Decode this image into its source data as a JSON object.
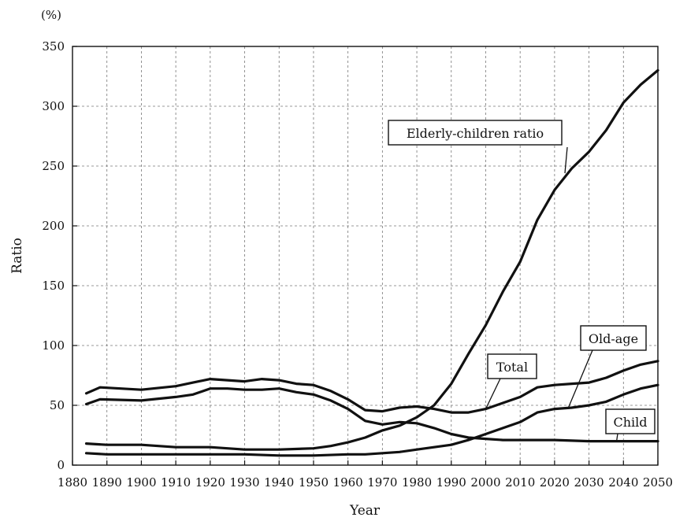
{
  "chart_data": {
    "type": "line",
    "unit_label": "(%)",
    "xlabel": "Year",
    "ylabel": "Ratio",
    "xlim": [
      1880,
      2050
    ],
    "ylim": [
      0,
      350
    ],
    "x_ticks": [
      1880,
      1890,
      1900,
      1910,
      1920,
      1930,
      1940,
      1950,
      1960,
      1970,
      1980,
      1990,
      2000,
      2010,
      2020,
      2030,
      2040,
      2050
    ],
    "y_ticks": [
      0,
      50,
      100,
      150,
      200,
      250,
      300,
      350
    ],
    "grid": true,
    "series": [
      {
        "name": "Elderly-children ratio",
        "x": [
          1884,
          1890,
          1900,
          1910,
          1920,
          1930,
          1940,
          1950,
          1955,
          1960,
          1965,
          1970,
          1975,
          1980,
          1985,
          1990,
          1995,
          2000,
          2005,
          2010,
          2015,
          2020,
          2025,
          2030,
          2035,
          2040,
          2045,
          2050
        ],
        "y": [
          18,
          17,
          17,
          15,
          15,
          13,
          13,
          14,
          16,
          19,
          23,
          29,
          33,
          40,
          50,
          68,
          93,
          117,
          145,
          170,
          205,
          230,
          248,
          262,
          280,
          303,
          318,
          330
        ]
      },
      {
        "name": "Total",
        "x": [
          1884,
          1888,
          1900,
          1910,
          1915,
          1920,
          1925,
          1930,
          1935,
          1940,
          1945,
          1950,
          1955,
          1960,
          1965,
          1970,
          1975,
          1980,
          1985,
          1990,
          1995,
          2000,
          2005,
          2010,
          2015,
          2020,
          2025,
          2030,
          2035,
          2040,
          2045,
          2050
        ],
        "y": [
          60,
          65,
          63,
          66,
          69,
          72,
          71,
          70,
          72,
          71,
          68,
          67,
          62,
          55,
          46,
          45,
          48,
          49,
          47,
          44,
          44,
          47,
          52,
          57,
          65,
          67,
          68,
          69,
          73,
          79,
          84,
          87
        ]
      },
      {
        "name": "Child",
        "x": [
          1884,
          1888,
          1900,
          1910,
          1915,
          1920,
          1925,
          1930,
          1935,
          1940,
          1945,
          1950,
          1955,
          1960,
          1965,
          1970,
          1975,
          1980,
          1985,
          1990,
          1995,
          2000,
          2005,
          2010,
          2020,
          2030,
          2035,
          2040,
          2050
        ],
        "y": [
          51,
          55,
          54,
          57,
          59,
          64,
          64,
          63,
          63,
          64,
          61,
          59,
          54,
          47,
          37,
          34,
          36,
          35,
          31,
          26,
          23,
          22,
          21,
          21,
          21,
          20,
          20,
          20,
          20
        ]
      },
      {
        "name": "Old-age",
        "x": [
          1884,
          1890,
          1900,
          1910,
          1920,
          1930,
          1940,
          1950,
          1960,
          1965,
          1970,
          1975,
          1980,
          1985,
          1990,
          1995,
          2000,
          2005,
          2010,
          2015,
          2020,
          2025,
          2030,
          2035,
          2040,
          2045,
          2050
        ],
        "y": [
          10,
          9,
          9,
          9,
          9,
          9,
          8,
          8,
          9,
          9,
          10,
          11,
          13,
          15,
          17,
          21,
          26,
          31,
          36,
          44,
          47,
          48,
          50,
          53,
          59,
          64,
          67
        ]
      }
    ],
    "annotations": [
      {
        "text": "Elderly-children ratio",
        "points_to": {
          "x": 2023,
          "y": 244
        }
      },
      {
        "text": "Total",
        "points_to": {
          "x": 2000,
          "y": 47
        }
      },
      {
        "text": "Old-age",
        "points_to": {
          "x": 2024,
          "y": 48
        }
      },
      {
        "text": "Child",
        "points_to": {
          "x": 2038,
          "y": 20
        }
      }
    ]
  }
}
